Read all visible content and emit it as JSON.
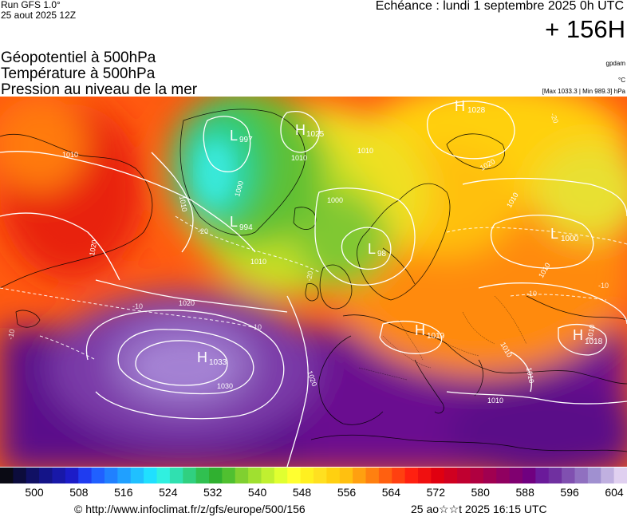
{
  "header": {
    "run_title": "Run GFS 1.0°",
    "run_date": "25 aout 2025 12Z",
    "echeance": "Echéance : lundi 1 septembre 2025 0h UTC",
    "lead": "+ 156H"
  },
  "fields": {
    "line1": "Géopotentiel à 500hPa",
    "line2": "Température à 500hPa",
    "line3": "Pression au niveau de la mer"
  },
  "units": {
    "geopotential": "gpdam",
    "temperature": "°C",
    "pressure_range": "[Max 1033.3 | Min 989.3] hPa"
  },
  "map": {
    "pressure_centers": [
      {
        "type": "H",
        "value": "1028"
      },
      {
        "type": "L",
        "value": "997"
      },
      {
        "type": "H",
        "value": "1025"
      },
      {
        "type": "L",
        "value": "994"
      },
      {
        "type": "L",
        "value": "98"
      },
      {
        "type": "L",
        "value": "1000"
      },
      {
        "type": "H",
        "value": "1019"
      },
      {
        "type": "H",
        "value": "1018"
      },
      {
        "type": "H",
        "value": "1033"
      }
    ],
    "isobar_labels": [
      "1010",
      "1010",
      "1010",
      "1000",
      "1010",
      "1020",
      "1000",
      "1010",
      "1020",
      "1010",
      "1020",
      "1020",
      "1030",
      "1010",
      "1010",
      "1010",
      "1010",
      "1010"
    ],
    "temperature_labels": [
      "-20",
      "-20",
      "-10",
      "-10",
      "-10",
      "-10",
      "-20",
      "-10"
    ]
  },
  "legend": {
    "colors": [
      "#0a0a14",
      "#0c0c3c",
      "#101064",
      "#141488",
      "#1818a8",
      "#1c1cc8",
      "#1f3cf0",
      "#2060ff",
      "#2080ff",
      "#20a0ff",
      "#20c0ff",
      "#20e0ff",
      "#30f0e0",
      "#30e0b0",
      "#30d080",
      "#30c050",
      "#30b030",
      "#50c030",
      "#80d030",
      "#a0e030",
      "#c0f030",
      "#e0ff30",
      "#ffff30",
      "#fff020",
      "#ffe020",
      "#ffd010",
      "#ffc010",
      "#ffa010",
      "#ff8010",
      "#ff6010",
      "#ff4010",
      "#ff2010",
      "#f01010",
      "#e00010",
      "#d00020",
      "#c00030",
      "#b00040",
      "#a00050",
      "#900060",
      "#800070",
      "#700080",
      "#6a1a9a",
      "#7030a0",
      "#8050b0",
      "#9070c0",
      "#a090d0",
      "#c0b0e0",
      "#e0d0f0"
    ],
    "ticks": [
      "500",
      "508",
      "516",
      "524",
      "532",
      "540",
      "548",
      "556",
      "564",
      "572",
      "580",
      "588",
      "596",
      "604"
    ]
  },
  "footer": {
    "source": "© http://www.infoclimat.fr/z/gfs/europe/500/156",
    "timestamp": "25 ao☆☆t 2025 16:15 UTC"
  }
}
